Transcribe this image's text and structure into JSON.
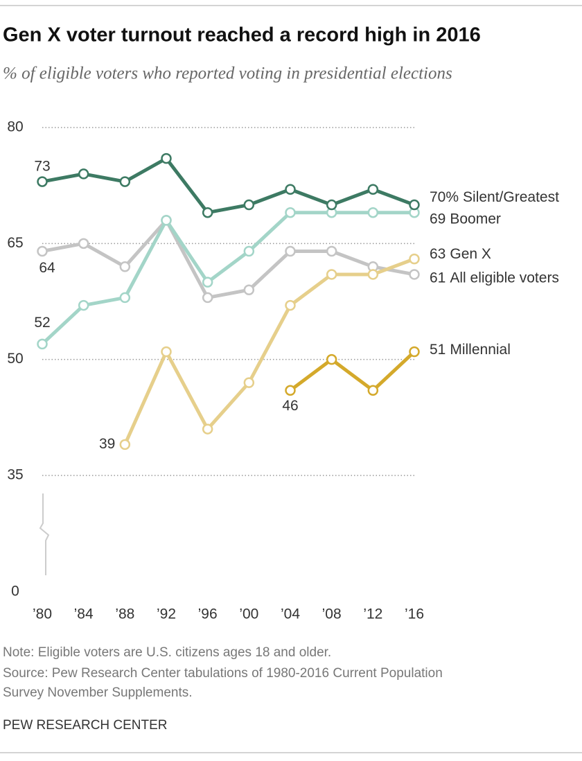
{
  "chart_data": {
    "type": "line",
    "title": "Gen X voter turnout reached a record high in 2016",
    "subtitle": "% of eligible voters who reported voting in presidential elections",
    "categories": [
      "’80",
      "’84",
      "’88",
      "’92",
      "’96",
      "’00",
      "’04",
      "’08",
      "’12",
      "’16"
    ],
    "series": [
      {
        "name": "Silent/Greatest",
        "color": "#3d7a63",
        "values": [
          73,
          74,
          73,
          76,
          69,
          70,
          72,
          70,
          72,
          70
        ],
        "value_labels": [
          "73",
          null,
          null,
          null,
          null,
          null,
          null,
          null,
          null,
          "70%"
        ]
      },
      {
        "name": "Boomer",
        "color": "#a3d5c8",
        "values": [
          52,
          57,
          58,
          68,
          60,
          64,
          69,
          69,
          69,
          69
        ],
        "value_labels": [
          "52",
          null,
          null,
          null,
          null,
          null,
          null,
          null,
          null,
          "69"
        ]
      },
      {
        "name": "Gen X",
        "color": "#e6cf8b",
        "values": [
          null,
          null,
          39,
          51,
          41,
          47,
          57,
          61,
          61,
          63
        ],
        "value_labels": [
          null,
          null,
          "39",
          null,
          null,
          null,
          null,
          null,
          null,
          "63"
        ]
      },
      {
        "name": "All eligible voters",
        "color": "#c4c4c4",
        "values": [
          64,
          65,
          62,
          68,
          58,
          59,
          64,
          64,
          62,
          61
        ],
        "value_labels": [
          "64",
          null,
          null,
          null,
          null,
          null,
          null,
          null,
          null,
          "61"
        ]
      },
      {
        "name": "Millennial",
        "color": "#d4a92b",
        "values": [
          null,
          null,
          null,
          null,
          null,
          null,
          46,
          50,
          46,
          51
        ],
        "value_labels": [
          null,
          null,
          null,
          null,
          null,
          null,
          "46",
          null,
          null,
          "51"
        ]
      }
    ],
    "ylim": [
      0,
      80
    ],
    "yticks": [
      0,
      35,
      50,
      65,
      80
    ],
    "grid": true,
    "axis_break": true,
    "note": "Note: Eligible voters are U.S. citizens ages 18 and older.",
    "source": [
      "Source: Pew Research Center tabulations of 1980-2016 Current Population",
      "Survey November Supplements."
    ],
    "footer": "PEW RESEARCH CENTER"
  }
}
